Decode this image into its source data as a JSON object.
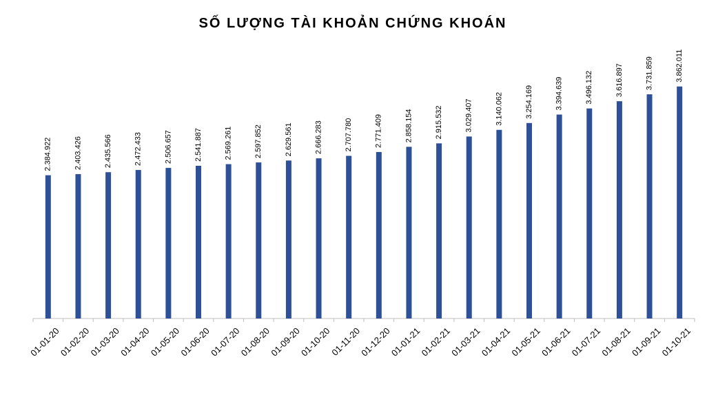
{
  "chart_data": {
    "type": "bar",
    "title": "SỐ LƯỢNG TÀI KHOẢN CHỨNG KHOÁN",
    "categories": [
      "01-01-20",
      "01-02-20",
      "01-03-20",
      "01-04-20",
      "01-05-20",
      "01-06-20",
      "01-07-20",
      "01-08-20",
      "01-09-20",
      "01-10-20",
      "01-11-20",
      "01-12-20",
      "01-01-21",
      "01-02-21",
      "01-03-21",
      "01-04-21",
      "01-05-21",
      "01-06-21",
      "01-07-21",
      "01-08-21",
      "01-09-21",
      "01-10-21"
    ],
    "values": [
      2384922,
      2403426,
      2435566,
      2472433,
      2506657,
      2541887,
      2569261,
      2597852,
      2629561,
      2666283,
      2707780,
      2771409,
      2858154,
      2915532,
      3029407,
      3140062,
      3254169,
      3394639,
      3496132,
      3616897,
      3731859,
      3862011
    ],
    "value_labels": [
      "2.384.922",
      "2.403.426",
      "2.435.566",
      "2.472.433",
      "2.506.657",
      "2.541.887",
      "2.569.261",
      "2.597.852",
      "2.629.561",
      "2.666.283",
      "2.707.780",
      "2.771.409",
      "2.858.154",
      "2.915.532",
      "3.029.407",
      "3.140.062",
      "3.254.169",
      "3.394.639",
      "3.496.132",
      "3.616.897",
      "3.731.859",
      "3.862.011"
    ],
    "color": "#2e5096",
    "ylim": [
      0,
      4500000
    ]
  }
}
